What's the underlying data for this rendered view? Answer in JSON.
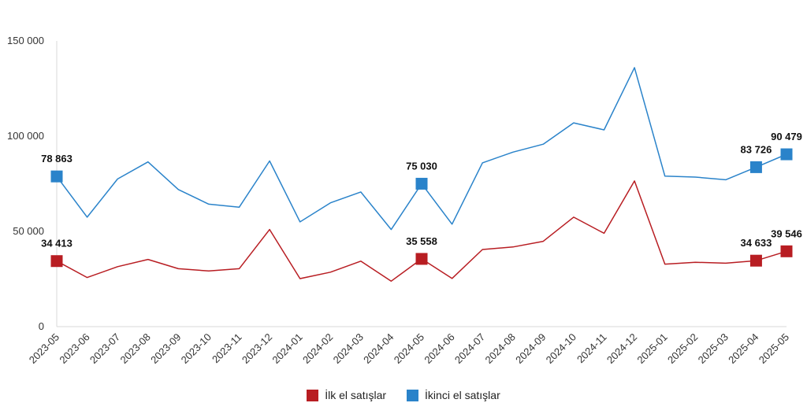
{
  "chart_data": {
    "type": "line",
    "x": [
      "2023-05",
      "2023-06",
      "2023-07",
      "2023-08",
      "2023-09",
      "2023-10",
      "2023-11",
      "2023-12",
      "2024-01",
      "2024-02",
      "2024-03",
      "2024-04",
      "2024-05",
      "2024-06",
      "2024-07",
      "2024-08",
      "2024-09",
      "2024-10",
      "2024-11",
      "2024-12",
      "2025-01",
      "2025-02",
      "2025-03",
      "2025-04",
      "2025-05"
    ],
    "ylim": [
      0,
      150000
    ],
    "yticks": [
      0,
      50000,
      100000,
      150000
    ],
    "ytick_labels": [
      "0",
      "50 000",
      "100 000",
      "150 000"
    ],
    "grid": false,
    "legend_position": "bottom",
    "series": [
      {
        "name": "İlk el satışlar",
        "color": "#B81D22",
        "values": [
          34413,
          25800,
          31500,
          35300,
          30400,
          29200,
          30400,
          51000,
          25200,
          28600,
          34400,
          23900,
          35558,
          25300,
          40500,
          41800,
          44800,
          57500,
          49000,
          76500,
          32800,
          33800,
          33300,
          34633,
          39546
        ]
      },
      {
        "name": "İkinci el satışlar",
        "color": "#2A83CA",
        "values": [
          78863,
          57500,
          77500,
          86500,
          72000,
          64300,
          62700,
          87000,
          55000,
          65000,
          70700,
          51000,
          75030,
          53800,
          86000,
          91600,
          95800,
          107000,
          103300,
          136000,
          79000,
          78500,
          77100,
          83726,
          90479
        ]
      }
    ],
    "annotations": [
      {
        "series": 1,
        "index": 0,
        "label": "78 863"
      },
      {
        "series": 1,
        "index": 12,
        "label": "75 030"
      },
      {
        "series": 1,
        "index": 23,
        "label": "83 726"
      },
      {
        "series": 1,
        "index": 24,
        "label": "90 479"
      },
      {
        "series": 0,
        "index": 0,
        "label": "34 413"
      },
      {
        "series": 0,
        "index": 12,
        "label": "35 558"
      },
      {
        "series": 0,
        "index": 23,
        "label": "34 633"
      },
      {
        "series": 0,
        "index": 24,
        "label": "39 546"
      }
    ]
  },
  "legend": {
    "items": [
      {
        "label": "İlk el satışlar",
        "color": "#B81D22"
      },
      {
        "label": "İkinci el satışlar",
        "color": "#2A83CA"
      }
    ]
  }
}
